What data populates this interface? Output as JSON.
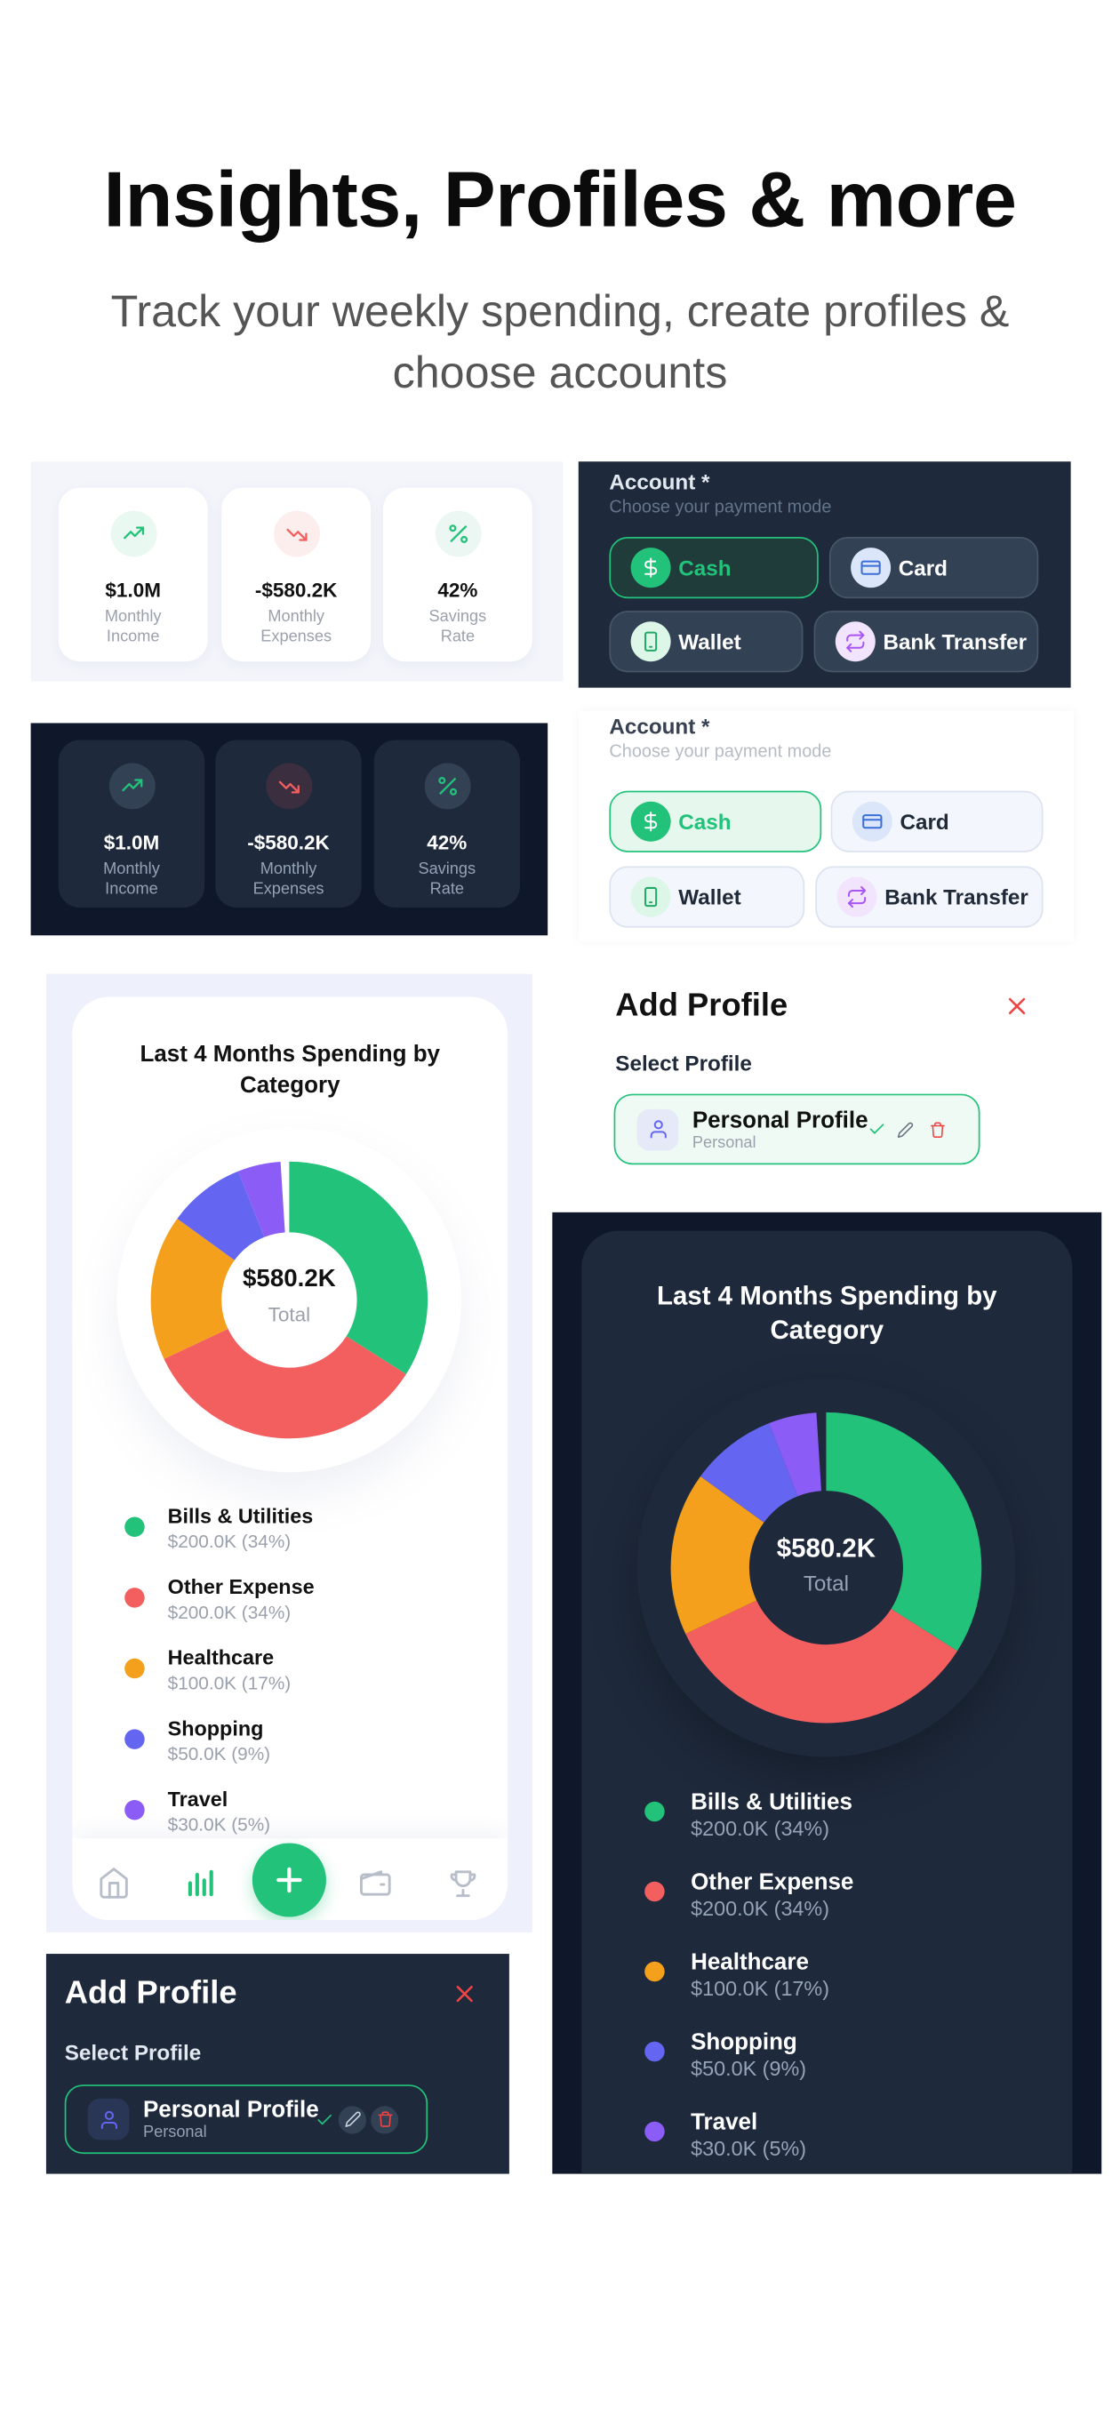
{
  "header": {
    "title": "Insights, Profiles & more",
    "subtitle": "Track your weekly spending, create profiles & choose accounts"
  },
  "stats": [
    {
      "value": "$1.0M",
      "label": "Monthly Income"
    },
    {
      "value": "-$580.2K",
      "label": "Monthly Expenses"
    },
    {
      "value": "42%",
      "label": "Savings Rate"
    }
  ],
  "account": {
    "label": "Account *",
    "hint": "Choose your payment mode",
    "options": [
      "Cash",
      "Card",
      "Wallet",
      "Bank Transfer"
    ]
  },
  "spending": {
    "title": "Last 4 Months Spending by Category",
    "total": "$580.2K",
    "total_label": "Total",
    "categories": [
      {
        "name": "Bills & Utilities",
        "amount": "$200.0K (34%)",
        "share": 34,
        "color": "#22c27a"
      },
      {
        "name": "Other Expense",
        "amount": "$200.0K (34%)",
        "share": 34,
        "color": "#f35f5f"
      },
      {
        "name": "Healthcare",
        "amount": "$100.0K (17%)",
        "share": 17,
        "color": "#f4a01c"
      },
      {
        "name": "Shopping",
        "amount": "$50.0K (9%)",
        "share": 9,
        "color": "#6466f1"
      },
      {
        "name": "Travel",
        "amount": "$30.0K (5%)",
        "share": 5,
        "color": "#8b5cf6"
      }
    ]
  },
  "profile": {
    "title": "Add Profile",
    "select_label": "Select Profile",
    "name": "Personal Profile",
    "type": "Personal"
  }
}
